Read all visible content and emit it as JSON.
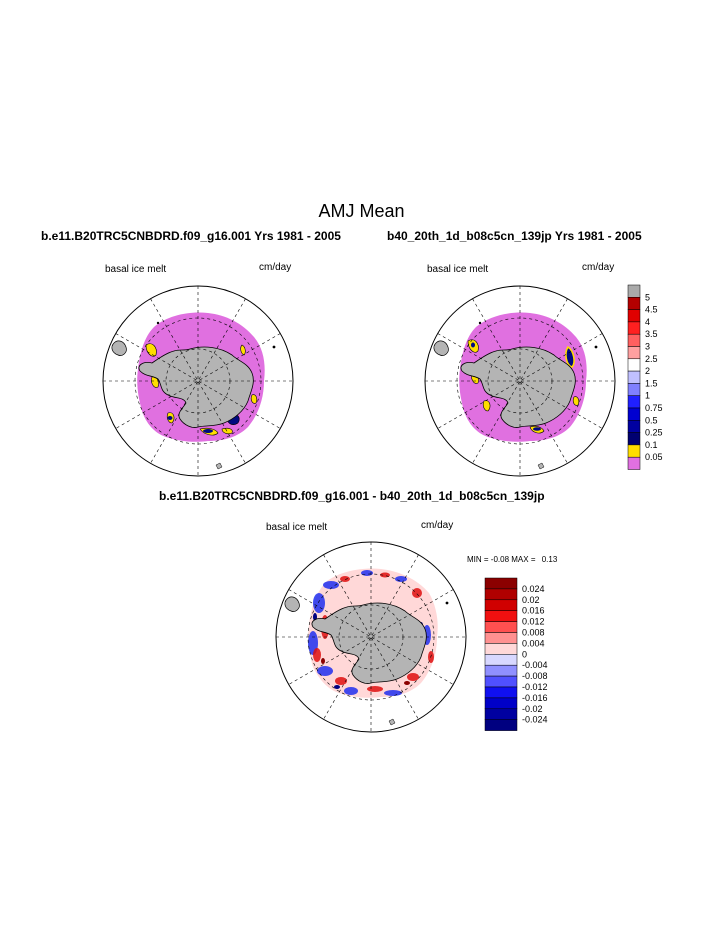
{
  "page_title": "AMJ Mean",
  "panels": {
    "left": {
      "case_title": "b.e11.B20TRC5CNBDRD.f09_g16.001  Yrs 1981 - 2005",
      "var_label": "basal ice melt",
      "units": "cm/day"
    },
    "right": {
      "case_title": "b40_20th_1d_b08c5cn_139jp  Yrs 1981 - 2005",
      "var_label": "basal ice melt",
      "units": "cm/day"
    },
    "diff": {
      "case_title": "b.e11.B20TRC5CNBDRD.f09_g16.001 - b40_20th_1d_b08c5cn_139jp",
      "var_label": "basal ice melt",
      "units": "cm/day",
      "min_label": "MIN =",
      "min_value": "-0.08",
      "max_label": "MAX =",
      "max_value": "0.13"
    }
  },
  "colors": {
    "land": "#b4b4b4",
    "field_fill": "#e070e0",
    "yellow": "#ffe000",
    "navy": "#000a80"
  },
  "chart_data": [
    {
      "type": "heatmap",
      "name": "model-mean-colorbar",
      "labels": [
        "5",
        "4.5",
        "4",
        "3.5",
        "3",
        "2.5",
        "2",
        "1.5",
        "1",
        "0.75",
        "0.5",
        "0.25",
        "0.1",
        "0.05"
      ],
      "colors": [
        "#aaaaaa",
        "#b40000",
        "#e00000",
        "#ff2020",
        "#ff6060",
        "#ffa0a0",
        "#ffffff",
        "#c0c0ff",
        "#8080ff",
        "#2020ff",
        "#0000d0",
        "#0000a0",
        "#000070",
        "#ffdd00",
        "#e070e0"
      ]
    },
    {
      "type": "heatmap",
      "name": "difference-colorbar",
      "labels": [
        "0.024",
        "0.02",
        "0.016",
        "0.012",
        "0.008",
        "0.004",
        "0",
        "-0.004",
        "-0.008",
        "-0.012",
        "-0.016",
        "-0.02",
        "-0.024"
      ],
      "colors": [
        "#8b0000",
        "#b00000",
        "#d00000",
        "#f01010",
        "#ff5050",
        "#ff9090",
        "#ffd8d8",
        "#d8d8ff",
        "#9090ff",
        "#5050ff",
        "#1010f0",
        "#0000c8",
        "#0000a0",
        "#000080"
      ]
    }
  ]
}
